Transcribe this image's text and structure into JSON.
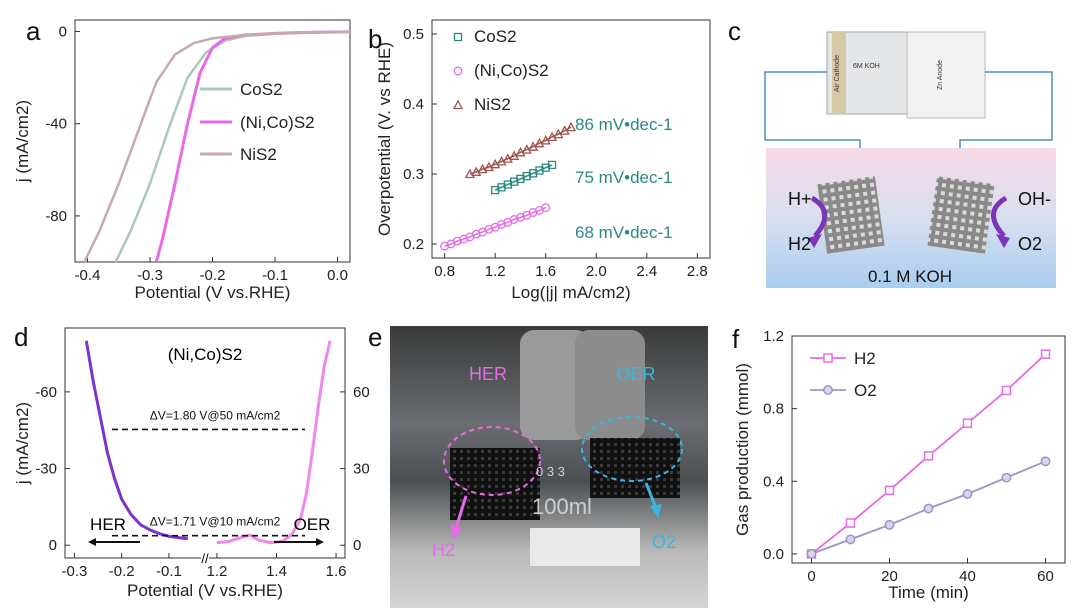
{
  "panels": {
    "a": {
      "label": "a",
      "chart_data": {
        "type": "line",
        "xlabel": "Potential (V vs.RHE)",
        "ylabel": "j (mA/cm2)",
        "xlim": [
          -0.42,
          0.02
        ],
        "ylim": [
          -100,
          5
        ],
        "xticks": [
          "-0.4",
          "-0.3",
          "-0.2",
          "-0.1",
          "0.0"
        ],
        "yticks": [
          "0",
          "-40",
          "-80"
        ],
        "series": [
          {
            "name": "CoS2",
            "color": "#a9c9b9",
            "x": [
              -0.355,
              -0.33,
              -0.3,
              -0.27,
              -0.24,
              -0.21,
              -0.18,
              -0.15,
              -0.1,
              -0.05,
              0.0,
              0.02
            ],
            "y": [
              -100,
              -86,
              -66,
              -42,
              -20,
              -9,
              -4,
              -2,
              -1,
              -0.5,
              -0.2,
              -0.1
            ]
          },
          {
            "name": "(Ni,Co)S2",
            "color": "#e86ae6",
            "x": [
              -0.29,
              -0.28,
              -0.26,
              -0.24,
              -0.22,
              -0.2,
              -0.18,
              -0.15,
              -0.1,
              -0.05,
              0.0,
              0.02
            ],
            "y": [
              -100,
              -90,
              -66,
              -40,
              -18,
              -7,
              -3,
              -1.5,
              -0.8,
              -0.4,
              -0.2,
              -0.1
            ]
          },
          {
            "name": "NiS2",
            "color": "#c9aaaa",
            "x": [
              -0.405,
              -0.38,
              -0.35,
              -0.32,
              -0.29,
              -0.26,
              -0.23,
              -0.2,
              -0.15,
              -0.1,
              -0.05,
              0.0,
              0.02
            ],
            "y": [
              -100,
              -86,
              -66,
              -44,
              -22,
              -10,
              -5,
              -3,
              -1.5,
              -0.8,
              -0.4,
              -0.2,
              -0.1
            ]
          }
        ]
      }
    },
    "b": {
      "label": "b",
      "chart_data": {
        "type": "scatter",
        "xlabel": "Log(|j| mA/cm2)",
        "ylabel": "Overpotential (V. vs RHE)",
        "xlim": [
          0.7,
          2.9
        ],
        "ylim": [
          0.18,
          0.52
        ],
        "xticks": [
          "0.8",
          "1.2",
          "1.6",
          "2.0",
          "2.4",
          "2.8"
        ],
        "yticks": [
          "0.2",
          "0.3",
          "0.4",
          "0.5"
        ],
        "series": [
          {
            "name": "CoS2",
            "color": "#2a8a82",
            "marker": "square",
            "x": [
              1.2,
              1.25,
              1.3,
              1.35,
              1.4,
              1.45,
              1.5,
              1.55,
              1.6,
              1.65
            ],
            "y": [
              0.277,
              0.281,
              0.285,
              0.289,
              0.293,
              0.297,
              0.301,
              0.305,
              0.309,
              0.313
            ]
          },
          {
            "name": "(Ni,Co)S2",
            "color": "#e86ae6",
            "marker": "circle",
            "x": [
              0.8,
              0.85,
              0.9,
              0.95,
              1.0,
              1.05,
              1.1,
              1.15,
              1.2,
              1.25,
              1.3,
              1.35,
              1.4,
              1.45,
              1.5,
              1.55,
              1.6
            ],
            "y": [
              0.197,
              0.2,
              0.204,
              0.207,
              0.21,
              0.214,
              0.217,
              0.221,
              0.224,
              0.228,
              0.231,
              0.235,
              0.238,
              0.241,
              0.245,
              0.248,
              0.252
            ]
          },
          {
            "name": "NiS2",
            "color": "#a0524d",
            "marker": "triangle",
            "x": [
              1.0,
              1.05,
              1.1,
              1.15,
              1.2,
              1.25,
              1.3,
              1.35,
              1.4,
              1.45,
              1.5,
              1.55,
              1.6,
              1.65,
              1.7,
              1.75,
              1.8
            ],
            "y": [
              0.3,
              0.303,
              0.307,
              0.31,
              0.314,
              0.318,
              0.322,
              0.326,
              0.331,
              0.335,
              0.339,
              0.344,
              0.348,
              0.353,
              0.357,
              0.362,
              0.367
            ]
          }
        ],
        "slopes": [
          "86 mV•dec-1",
          "75 mV•dec-1",
          "68 mV•dec-1"
        ]
      }
    },
    "c": {
      "label": "c",
      "device_labels": [
        "Air Cathode",
        "6M KOH",
        "Zn Anode"
      ],
      "h_plus": "H+",
      "h2": "H2",
      "oh_minus": "OH-",
      "o2": "O2",
      "electrolyte": "0.1 M KOH"
    },
    "d": {
      "label": "d",
      "chart_data": {
        "type": "line",
        "title": "(Ni,Co)S2",
        "xlabel": "Potential (V vs.RHE)",
        "ylabel": "j (mA/cm2)",
        "xticks": [
          "-0.3",
          "-0.2",
          "-0.1",
          "1.2",
          "1.4",
          "1.6"
        ],
        "yticks_left": [
          "-60",
          "-30",
          "0"
        ],
        "yticks_right": [
          "60",
          "30",
          "0"
        ],
        "her": {
          "color": "#7a33cc",
          "x": [
            -0.275,
            -0.26,
            -0.245,
            -0.23,
            -0.215,
            -0.2,
            -0.18,
            -0.16,
            -0.14,
            -0.12,
            -0.1,
            -0.08,
            -0.06
          ],
          "y": [
            -80,
            -64,
            -50,
            -36,
            -26,
            -18,
            -12,
            -8,
            -6,
            -4.5,
            -3.5,
            -3,
            -2.5
          ]
        },
        "oer": {
          "color": "#ee88ea",
          "x": [
            1.2,
            1.24,
            1.28,
            1.31,
            1.34,
            1.38,
            1.42,
            1.45,
            1.48,
            1.5,
            1.52,
            1.54,
            1.56,
            1.58
          ],
          "y": [
            1,
            1.5,
            3,
            4,
            2,
            1,
            1.5,
            4,
            10,
            20,
            36,
            54,
            70,
            80
          ]
        },
        "annotations": [
          "ΔV=1.80 V@50 mA/cm2",
          "ΔV=1.71 V@10 mA/cm2"
        ],
        "her_label": "HER",
        "oer_label": "OER"
      }
    },
    "e": {
      "label": "e",
      "her": "HER",
      "oer": "OER",
      "h2": "H2",
      "o2": "O2",
      "beaker_marks": [
        "100ml",
        "0 3 3"
      ]
    },
    "f": {
      "label": "f",
      "chart_data": {
        "type": "line",
        "xlabel": "Time (min)",
        "ylabel": "Gas production (mmol)",
        "xlim": [
          -5,
          65
        ],
        "ylim": [
          -0.05,
          1.2
        ],
        "xticks": [
          "0",
          "20",
          "40",
          "60"
        ],
        "yticks": [
          "0.0",
          "0.4",
          "0.8",
          "1.2"
        ],
        "series": [
          {
            "name": "H2",
            "color": "#e86ae6",
            "marker": "square",
            "x": [
              0,
              10,
              20,
              30,
              40,
              50,
              60
            ],
            "y": [
              0.0,
              0.17,
              0.35,
              0.54,
              0.72,
              0.9,
              1.1
            ]
          },
          {
            "name": "O2",
            "color": "#9a95c9",
            "marker": "circle",
            "x": [
              0,
              10,
              20,
              30,
              40,
              50,
              60
            ],
            "y": [
              0.0,
              0.08,
              0.16,
              0.25,
              0.33,
              0.42,
              0.51
            ]
          }
        ]
      }
    }
  }
}
